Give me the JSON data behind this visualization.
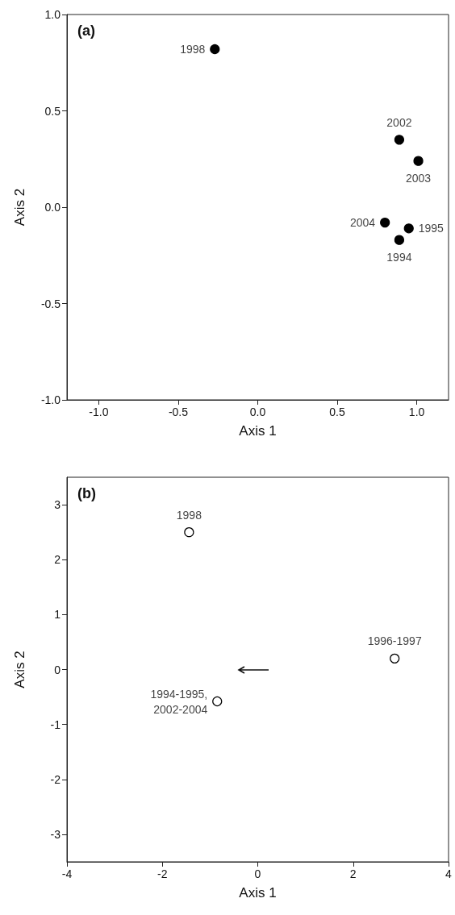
{
  "chart_data": [
    {
      "type": "scatter",
      "title": "(a)",
      "xlabel": "Axis 1",
      "ylabel": "Axis 2",
      "marker": "circle",
      "grid": false,
      "series": [
        {
          "color": "#000000",
          "x": [
            -0.27,
            0.89,
            1.01,
            0.8,
            0.95,
            0.89
          ],
          "values": [
            0.82,
            0.35,
            0.24,
            -0.08,
            -0.11,
            -0.17
          ]
        }
      ],
      "xlim": [
        -1.2,
        1.2
      ],
      "xticks": [
        {
          "value": -1,
          "label": "-1.0"
        },
        {
          "value": -0.5,
          "label": "-0.5"
        },
        {
          "value": 0,
          "label": "0.0"
        },
        {
          "value": 0.5,
          "label": "0.5"
        },
        {
          "value": 1,
          "label": "1.0"
        }
      ],
      "ylim": [
        -1,
        1
      ],
      "yticks": [
        {
          "value": -1,
          "label": "-1.0"
        },
        {
          "value": -0.5,
          "label": "-0.5"
        },
        {
          "value": 0,
          "label": "0.0"
        },
        {
          "value": 0.5,
          "label": "0.5"
        },
        {
          "value": 1,
          "label": "1.0"
        }
      ],
      "annotations": [
        {
          "text": "1998",
          "x": -0.27,
          "y": 0.82
        },
        {
          "text": "2002",
          "x": 0.89,
          "y": 0.35
        },
        {
          "text": "2003",
          "x": 1.01,
          "y": 0.24
        },
        {
          "text": "2004",
          "x": 0.8,
          "y": -0.08
        },
        {
          "text": "1995",
          "x": 0.95,
          "y": -0.11
        },
        {
          "text": "1994",
          "x": 0.89,
          "y": -0.17
        }
      ]
    },
    {
      "type": "scatter",
      "title": "(b)",
      "xlabel": "Axis 1",
      "ylabel": "Axis 2",
      "marker": "circle",
      "grid": false,
      "series": [
        {
          "color": "#ffffff",
          "x": [
            -1.44,
            2.87,
            -0.85
          ],
          "values": [
            2.5,
            0.2,
            -0.58
          ]
        }
      ],
      "xlim": [
        -4,
        4
      ],
      "xticks": [
        -4,
        -2,
        0,
        2,
        4
      ],
      "ylim": [
        -3.5,
        3.5
      ],
      "yticks": [
        -3,
        -2,
        -1,
        0,
        1,
        2,
        3
      ],
      "annotations": [
        {
          "text": "1998",
          "x": -1.44,
          "y": 2.5
        },
        {
          "text": "1996-1997",
          "x": 2.87,
          "y": 0.2
        },
        {
          "text": "1994-1995,\n2002-2004",
          "x": -0.85,
          "y": -0.58
        }
      ]
    }
  ]
}
